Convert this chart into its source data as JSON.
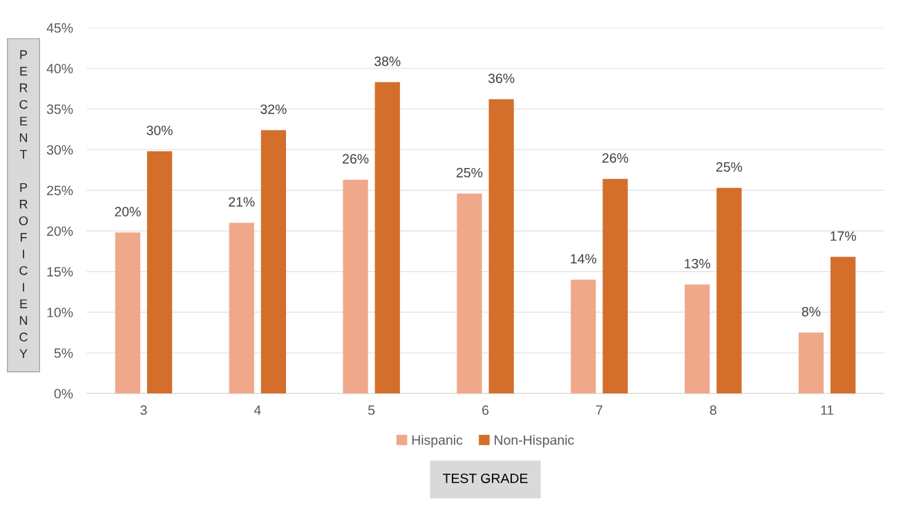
{
  "chart_data": {
    "type": "bar",
    "xlabel": "TEST GRADE",
    "ylabel": "PERCENT PROFICIENCY",
    "categories": [
      "3",
      "4",
      "5",
      "6",
      "7",
      "8",
      "11"
    ],
    "series": [
      {
        "name": "Hispanic",
        "color": "#f0a88a",
        "values": [
          19.8,
          21.0,
          26.3,
          24.6,
          14.0,
          13.4,
          7.5
        ],
        "value_labels": [
          "20%",
          "21%",
          "26%",
          "25%",
          "14%",
          "13%",
          "8%"
        ]
      },
      {
        "name": "Non-Hispanic",
        "color": "#d46e2b",
        "values": [
          29.8,
          32.4,
          38.3,
          36.2,
          26.4,
          25.3,
          16.8
        ],
        "value_labels": [
          "30%",
          "32%",
          "38%",
          "36%",
          "26%",
          "25%",
          "17%"
        ]
      }
    ],
    "ylim": [
      0,
      45
    ],
    "yticks": [
      {
        "value": 0,
        "label": "0%"
      },
      {
        "value": 5,
        "label": "5%"
      },
      {
        "value": 10,
        "label": "10%"
      },
      {
        "value": 15,
        "label": "15%"
      },
      {
        "value": 20,
        "label": "20%"
      },
      {
        "value": 25,
        "label": "25%"
      },
      {
        "value": 30,
        "label": "30%"
      },
      {
        "value": 35,
        "label": "35%"
      },
      {
        "value": 40,
        "label": "40%"
      },
      {
        "value": 45,
        "label": "45%"
      }
    ],
    "grid": "y",
    "legend": "bottom"
  }
}
